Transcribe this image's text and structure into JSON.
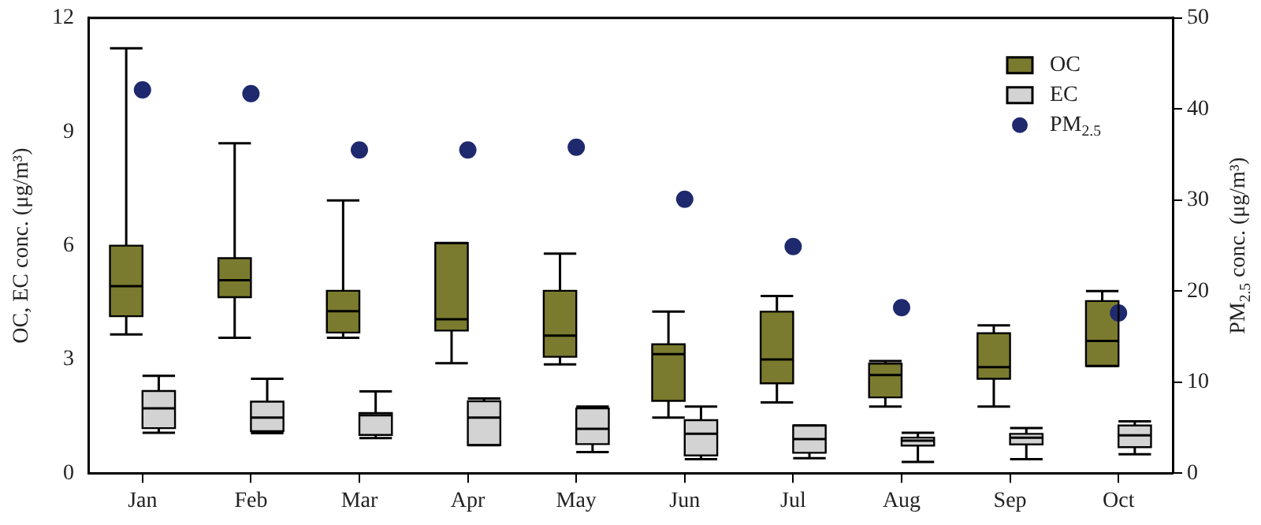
{
  "chart_data": {
    "type": "box",
    "ylabel": "OC, EC conc. (μg/m³)",
    "y2label": "PM$_{2.5}$ conc. (μg/m³)",
    "categories": [
      "Jan",
      "Feb",
      "Mar",
      "Apr",
      "May",
      "Jun",
      "Jul",
      "Aug",
      "Sep",
      "Oct"
    ],
    "ylim": [
      0,
      12
    ],
    "yticks": [
      0,
      3,
      6,
      9,
      12
    ],
    "y2lim": [
      0,
      50
    ],
    "y2ticks": [
      0,
      10,
      20,
      30,
      40,
      50
    ],
    "grid": false,
    "legend": "top right",
    "series": [
      {
        "name": "OC",
        "type": "box",
        "color": "#7b7b2f",
        "boxes": [
          {
            "low": 3.66,
            "q1": 4.14,
            "median": 4.93,
            "q3": 6.0,
            "high": 11.2
          },
          {
            "low": 3.57,
            "q1": 4.64,
            "median": 5.09,
            "q3": 5.67,
            "high": 8.7
          },
          {
            "low": 3.57,
            "q1": 3.71,
            "median": 4.27,
            "q3": 4.81,
            "high": 7.19
          },
          {
            "low": 2.9,
            "q1": 3.76,
            "median": 4.06,
            "q3": 6.07,
            "high": 6.07
          },
          {
            "low": 2.87,
            "q1": 3.07,
            "median": 3.63,
            "q3": 4.81,
            "high": 5.79
          },
          {
            "low": 1.47,
            "q1": 1.91,
            "median": 3.14,
            "q3": 3.4,
            "high": 4.26
          },
          {
            "low": 1.87,
            "q1": 2.37,
            "median": 3.0,
            "q3": 4.26,
            "high": 4.67
          },
          {
            "low": 1.76,
            "q1": 2.0,
            "median": 2.59,
            "q3": 2.89,
            "high": 2.96
          },
          {
            "low": 1.76,
            "q1": 2.49,
            "median": 2.8,
            "q3": 3.69,
            "high": 3.9
          },
          {
            "low": 2.83,
            "q1": 2.83,
            "median": 3.49,
            "q3": 4.54,
            "high": 4.8
          }
        ]
      },
      {
        "name": "EC",
        "type": "box",
        "color": "#d3d3d3",
        "boxes": [
          {
            "low": 1.07,
            "q1": 1.19,
            "median": 1.71,
            "q3": 2.17,
            "high": 2.57
          },
          {
            "low": 1.06,
            "q1": 1.11,
            "median": 1.47,
            "q3": 1.89,
            "high": 2.49
          },
          {
            "low": 0.93,
            "q1": 1.01,
            "median": 1.53,
            "q3": 1.59,
            "high": 2.16
          },
          {
            "low": 0.74,
            "q1": 0.74,
            "median": 1.47,
            "q3": 1.9,
            "high": 1.97
          },
          {
            "low": 0.56,
            "q1": 0.77,
            "median": 1.17,
            "q3": 1.71,
            "high": 1.76
          },
          {
            "low": 0.37,
            "q1": 0.47,
            "median": 1.04,
            "q3": 1.4,
            "high": 1.76
          },
          {
            "low": 0.4,
            "q1": 0.54,
            "median": 0.9,
            "q3": 1.26,
            "high": 1.26
          },
          {
            "low": 0.3,
            "q1": 0.73,
            "median": 0.86,
            "q3": 0.94,
            "high": 1.07
          },
          {
            "low": 0.37,
            "q1": 0.76,
            "median": 0.94,
            "q3": 1.04,
            "high": 1.19
          },
          {
            "low": 0.5,
            "q1": 0.69,
            "median": 1.0,
            "q3": 1.26,
            "high": 1.37
          }
        ]
      },
      {
        "name": "PM$_{2.5}$",
        "type": "scatter",
        "axis": "y2",
        "color": "#1f2a6e",
        "marker": "circle",
        "values": [
          42.1,
          41.7,
          35.5,
          35.5,
          35.8,
          30.1,
          24.9,
          18.2,
          null,
          17.6
        ]
      }
    ]
  }
}
